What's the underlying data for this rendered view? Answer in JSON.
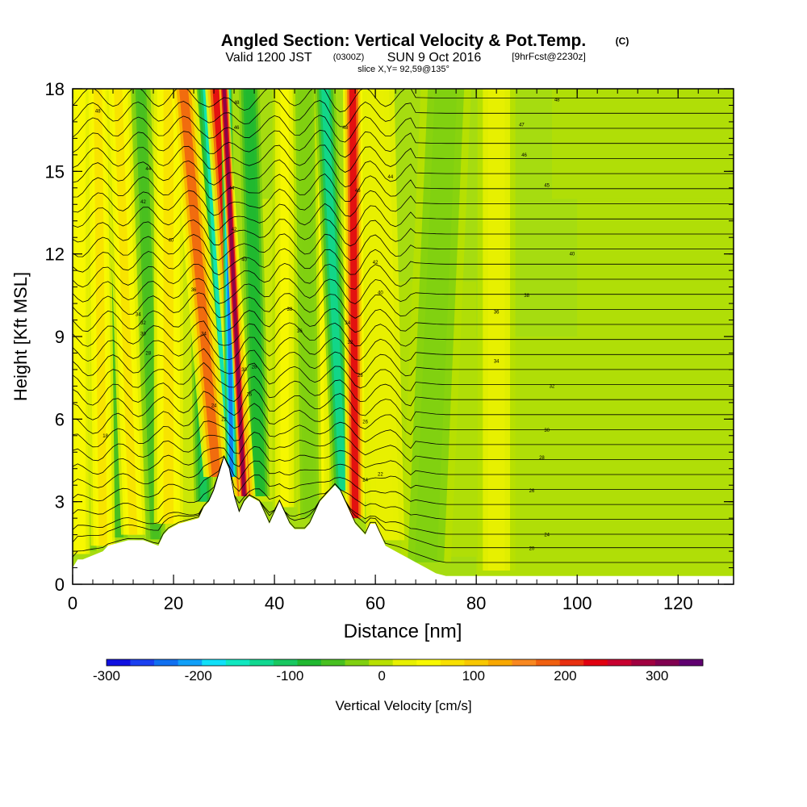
{
  "title": {
    "main": "Angled Section: Vertical Velocity & Pot.Temp.",
    "copyright": "(C)",
    "valid_pre": "Valid 1200 JST",
    "valid_utc": "(0300Z)",
    "valid_post": "SUN 9 Oct 2016",
    "forecast": "[9hrFcst@2230z]",
    "slice": "slice X,Y= 92,59@135°"
  },
  "chart_data": {
    "type": "heatmap",
    "xlabel": "Distance [nm]",
    "ylabel": "Height [Kft MSL]",
    "xlim": [
      0,
      131
    ],
    "ylim": [
      0,
      18
    ],
    "x_ticks": [
      0,
      20,
      40,
      60,
      80,
      100,
      120
    ],
    "y_ticks": [
      0,
      3,
      6,
      9,
      12,
      15,
      18
    ],
    "colorbar": {
      "label": "Vertical Velocity [cm/s]",
      "range": [
        -300,
        350
      ],
      "ticks": [
        -300,
        -200,
        -100,
        0,
        100,
        200,
        300
      ],
      "colors": [
        "#1010e0",
        "#1a40f0",
        "#1070f0",
        "#10a0f8",
        "#10e0f8",
        "#10e8c0",
        "#10d890",
        "#18c860",
        "#20b830",
        "#48c020",
        "#80d010",
        "#b8e000",
        "#e8f000",
        "#f8f800",
        "#f8e000",
        "#f8c800",
        "#f8a800",
        "#f88820",
        "#f06010",
        "#e83010",
        "#e00010",
        "#c80030",
        "#a00040",
        "#800050",
        "#600070"
      ]
    },
    "terrain_kft": {
      "x": [
        0,
        1,
        2,
        6,
        7,
        11,
        14,
        17,
        18,
        19,
        21,
        25,
        26,
        27,
        28,
        29,
        30,
        31,
        32,
        33,
        34,
        35,
        37,
        38,
        39,
        40,
        41,
        42,
        43,
        44,
        45,
        46,
        47,
        48,
        49,
        50,
        51,
        52,
        53,
        54,
        55,
        56,
        57,
        58,
        59,
        60,
        61,
        62,
        64,
        66,
        68,
        70,
        72,
        74,
        80,
        90,
        131
      ],
      "y": [
        0.6,
        0.9,
        0.9,
        1.2,
        1.4,
        1.6,
        1.6,
        1.4,
        1.8,
        2.0,
        2.2,
        2.4,
        2.8,
        3.0,
        3.4,
        4.0,
        4.6,
        4.2,
        3.2,
        2.6,
        3.0,
        3.2,
        3.0,
        2.6,
        2.2,
        2.6,
        3.0,
        2.6,
        2.2,
        2.0,
        2.0,
        2.0,
        2.2,
        2.6,
        3.0,
        3.2,
        3.4,
        3.6,
        3.4,
        3.0,
        2.6,
        2.2,
        2.0,
        1.8,
        2.2,
        2.2,
        1.8,
        1.4,
        1.2,
        1.0,
        0.8,
        0.6,
        0.4,
        0.3,
        0.3,
        0.3,
        0.3
      ]
    },
    "updraft_bands": [
      {
        "x_base": 1.5,
        "x_top": 1.5,
        "w": 1.2,
        "v": 60
      },
      {
        "x_base": 6,
        "x_top": 5,
        "w": 1.5,
        "v": 80
      },
      {
        "x_base": 12,
        "x_top": 9,
        "w": 1.5,
        "v": 80
      },
      {
        "x_base": 19,
        "x_top": 19,
        "w": 1.8,
        "v": 80
      },
      {
        "x_base": 28.5,
        "x_top": 22,
        "w": 1.6,
        "v": 170
      },
      {
        "x_base": 34,
        "x_top": 28.5,
        "w": 1.4,
        "v": 230
      },
      {
        "x_base": 34,
        "x_top": 30,
        "w": 0.6,
        "v": 320
      },
      {
        "x_base": 56,
        "x_top": 55.5,
        "w": 1.2,
        "v": 230
      },
      {
        "x_base": 42,
        "x_top": 42,
        "w": 1.5,
        "v": 40
      },
      {
        "x_base": 49,
        "x_top": 49,
        "w": 1.5,
        "v": 40
      },
      {
        "x_base": 62,
        "x_top": 60,
        "w": 3.0,
        "v": 30
      },
      {
        "x_base": 84,
        "x_top": 84,
        "w": 3.0,
        "v": 20
      }
    ],
    "downdraft_bands": [
      {
        "x_base": 3.5,
        "x_top": 3,
        "w": 1.0,
        "v": -40
      },
      {
        "x_base": 9,
        "x_top": 7.5,
        "w": 1.2,
        "v": -60
      },
      {
        "x_base": 16.5,
        "x_top": 13.5,
        "w": 1.2,
        "v": -60
      },
      {
        "x_base": 26,
        "x_top": 24.5,
        "w": 1.2,
        "v": -110
      },
      {
        "x_base": 31,
        "x_top": 26.5,
        "w": 1.3,
        "v": -150
      },
      {
        "x_base": 31.5,
        "x_top": 30.5,
        "w": 0.7,
        "v": -240
      },
      {
        "x_base": 37,
        "x_top": 35,
        "w": 1.3,
        "v": -90
      },
      {
        "x_base": 53.5,
        "x_top": 50,
        "w": 1.3,
        "v": -130
      },
      {
        "x_base": 47,
        "x_top": 46,
        "w": 1.5,
        "v": -40
      },
      {
        "x_base": 70,
        "x_top": 74,
        "w": 4.0,
        "v": -20
      }
    ],
    "isentrope_labels": [
      {
        "text": "48",
        "x": 5,
        "y": 17.2
      },
      {
        "text": "44",
        "x": 15,
        "y": 15.1
      },
      {
        "text": "42",
        "x": 14,
        "y": 13.9
      },
      {
        "text": "40",
        "x": 19.5,
        "y": 12.5
      },
      {
        "text": "36",
        "x": 24,
        "y": 10.7
      },
      {
        "text": "34",
        "x": 13,
        "y": 9.8
      },
      {
        "text": "32",
        "x": 14,
        "y": 9.5
      },
      {
        "text": "30",
        "x": 14,
        "y": 9.1
      },
      {
        "text": "28",
        "x": 15,
        "y": 8.4
      },
      {
        "text": "18",
        "x": 6.5,
        "y": 5.4
      },
      {
        "text": "48",
        "x": 32.5,
        "y": 17.5
      },
      {
        "text": "46",
        "x": 32.5,
        "y": 16.6
      },
      {
        "text": "44",
        "x": 31.5,
        "y": 14.4
      },
      {
        "text": "42",
        "x": 32,
        "y": 12.9
      },
      {
        "text": "40",
        "x": 34,
        "y": 11.8
      },
      {
        "text": "34",
        "x": 26,
        "y": 9.1
      },
      {
        "text": "30",
        "x": 34,
        "y": 7.8
      },
      {
        "text": "28",
        "x": 36,
        "y": 7.9
      },
      {
        "text": "26",
        "x": 35,
        "y": 6.9
      },
      {
        "text": "24",
        "x": 28,
        "y": 6.5
      },
      {
        "text": "22",
        "x": 30,
        "y": 6.0
      },
      {
        "text": "48",
        "x": 54,
        "y": 16.6
      },
      {
        "text": "46",
        "x": 56.5,
        "y": 14.3
      },
      {
        "text": "42",
        "x": 60,
        "y": 11.7
      },
      {
        "text": "40",
        "x": 61,
        "y": 10.6
      },
      {
        "text": "38",
        "x": 43,
        "y": 10.0
      },
      {
        "text": "36",
        "x": 45,
        "y": 9.2
      },
      {
        "text": "34",
        "x": 54.5,
        "y": 9.5
      },
      {
        "text": "32",
        "x": 55,
        "y": 8.8
      },
      {
        "text": "28",
        "x": 57,
        "y": 7.6
      },
      {
        "text": "26",
        "x": 58,
        "y": 5.9
      },
      {
        "text": "24",
        "x": 58,
        "y": 3.8
      },
      {
        "text": "22",
        "x": 61,
        "y": 4.0
      },
      {
        "text": "44",
        "x": 63,
        "y": 14.8
      },
      {
        "text": "48",
        "x": 96,
        "y": 17.6
      },
      {
        "text": "47",
        "x": 89,
        "y": 16.7
      },
      {
        "text": "46",
        "x": 89.5,
        "y": 15.6
      },
      {
        "text": "45",
        "x": 94,
        "y": 14.5
      },
      {
        "text": "40",
        "x": 99,
        "y": 12.0
      },
      {
        "text": "38",
        "x": 90,
        "y": 10.5
      },
      {
        "text": "36",
        "x": 84,
        "y": 9.9
      },
      {
        "text": "34",
        "x": 84,
        "y": 8.1
      },
      {
        "text": "32",
        "x": 95,
        "y": 7.2
      },
      {
        "text": "30",
        "x": 94,
        "y": 5.6
      },
      {
        "text": "28",
        "x": 93,
        "y": 4.6
      },
      {
        "text": "26",
        "x": 91,
        "y": 3.4
      },
      {
        "text": "24",
        "x": 94,
        "y": 1.8
      },
      {
        "text": "20",
        "x": 91,
        "y": 1.3
      }
    ]
  }
}
